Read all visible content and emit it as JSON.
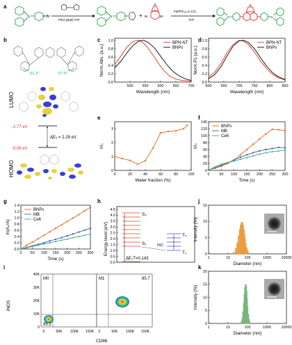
{
  "panel_letters": [
    "a",
    "b",
    "c",
    "d",
    "e",
    "f",
    "g",
    "h",
    "i",
    "j",
    "k"
  ],
  "scheme": {
    "reagent1": "PdCl₂(dppf),THF",
    "reagent2": "Pd(PPh₃)₄,K₂CO₃",
    "solvent2": "THF",
    "br": "Br",
    "n": "N",
    "s": "S",
    "o": "O",
    "b": "B",
    "plus": "+"
  },
  "orbitals": {
    "angle1": "61.3°",
    "angle2": "57.5°",
    "lumo": "LUMO",
    "homo": "HOMO",
    "lumo_e": "-2.77 eV",
    "homo_e": "-5.06 eV",
    "gap": "ΔE₉ = 2.29 eV"
  },
  "jablonski": {
    "s0": "S₀",
    "s1": "S₁",
    "t1": "T₁",
    "tn": "Tₙ",
    "isc": "ISC",
    "dest": "ΔEₛT=0.143",
    "ylabel": "Energy level (eV)",
    "yticks": [
      "0.0",
      "0.5",
      "1.0",
      "1.5",
      "2.0",
      "2.5",
      "3.0",
      "3.5",
      "4.0",
      "4.5"
    ]
  },
  "flow": {
    "xlabel": "CD86",
    "ylabel": "iNOS",
    "xticks": [
      "0",
      "50K",
      "100K",
      "150K"
    ],
    "yticks": [
      "0",
      "10K",
      "20K",
      "30K",
      "40K"
    ],
    "m0": "M0",
    "m0_val": "95.2",
    "m1": "M1",
    "m1_val": "85.7"
  },
  "colors": {
    "red": "#e8412c",
    "black": "#1a1a1a",
    "orange": "#e9742a",
    "blue": "#4a6cb3",
    "green": "#4fae8a",
    "dls_orange": "#f2a54a",
    "dls_green": "#5fc79a"
  },
  "chart_data": [
    {
      "panel": "c",
      "type": "line",
      "xlabel": "Wavelength (nm)",
      "ylabel": "Norm.Abs. (a.u.)",
      "xlim": [
        450,
        700
      ],
      "ylim": [
        0,
        1.05
      ],
      "xticks": [
        500,
        550,
        600,
        650,
        700
      ],
      "yticks": [
        0.0,
        0.2,
        0.4,
        0.6,
        0.8,
        1.0
      ],
      "legend": "top-right",
      "series": [
        {
          "name": "BPN-NT",
          "color": "#e8412c",
          "x": [
            450,
            470,
            490,
            510,
            525,
            540,
            555,
            570,
            590,
            610,
            630,
            650,
            670,
            700
          ],
          "y": [
            0.42,
            0.62,
            0.84,
            0.97,
            1.0,
            0.96,
            0.85,
            0.7,
            0.48,
            0.28,
            0.14,
            0.07,
            0.04,
            0.02
          ]
        },
        {
          "name": "BNPs",
          "color": "#1a1a1a",
          "x": [
            450,
            470,
            490,
            510,
            530,
            545,
            560,
            580,
            600,
            620,
            640,
            660,
            680,
            700
          ],
          "y": [
            0.34,
            0.5,
            0.7,
            0.88,
            0.99,
            1.0,
            0.95,
            0.82,
            0.62,
            0.42,
            0.26,
            0.15,
            0.08,
            0.04
          ]
        }
      ]
    },
    {
      "panel": "d",
      "type": "line",
      "xlabel": "Wavelength (nm)",
      "ylabel": "Norm.PL (a.u.)",
      "xlim": [
        600,
        850
      ],
      "ylim": [
        0,
        1.05
      ],
      "xticks": [
        600,
        650,
        700,
        750,
        800,
        850
      ],
      "yticks": [
        0.0,
        0.2,
        0.4,
        0.6,
        0.8,
        1.0
      ],
      "legend": "top-right",
      "series": [
        {
          "name": "BPN-NT",
          "color": "#e8412c",
          "x": [
            600,
            620,
            640,
            660,
            680,
            700,
            715,
            730,
            750,
            770,
            790,
            810,
            830,
            850
          ],
          "y": [
            0.12,
            0.24,
            0.44,
            0.7,
            0.9,
            1.0,
            0.98,
            0.9,
            0.72,
            0.5,
            0.32,
            0.18,
            0.1,
            0.05
          ]
        },
        {
          "name": "BNPs",
          "color": "#1a1a1a",
          "x": [
            600,
            620,
            640,
            660,
            680,
            700,
            715,
            730,
            750,
            770,
            790,
            810,
            830,
            850
          ],
          "y": [
            0.08,
            0.18,
            0.36,
            0.62,
            0.86,
            0.99,
            1.0,
            0.95,
            0.8,
            0.58,
            0.38,
            0.22,
            0.12,
            0.06
          ]
        }
      ]
    },
    {
      "panel": "e",
      "type": "line",
      "xlabel": "Water fraction (%)",
      "ylabel": "I/I₀",
      "xlim": [
        0,
        100
      ],
      "ylim": [
        0,
        3.5
      ],
      "xticks": [
        0,
        20,
        40,
        60,
        80,
        100
      ],
      "yticks": [
        0,
        1,
        2,
        3
      ],
      "series": [
        {
          "name": "",
          "color": "#e9742a",
          "x": [
            0,
            10,
            20,
            30,
            40,
            50,
            60,
            70,
            80,
            90,
            95
          ],
          "y": [
            1.0,
            0.85,
            0.72,
            0.45,
            0.7,
            1.6,
            2.7,
            2.8,
            2.85,
            3.0,
            3.25
          ]
        }
      ]
    },
    {
      "panel": "f",
      "type": "line",
      "xlabel": "Time (s)",
      "ylabel": "I/I₀",
      "xlim": [
        0,
        300
      ],
      "ylim": [
        0,
        140
      ],
      "xticks": [
        0,
        50,
        100,
        150,
        200,
        250,
        300
      ],
      "yticks": [
        0,
        20,
        40,
        60,
        80,
        100,
        120,
        140
      ],
      "legend": "top-left",
      "series": [
        {
          "name": "BNPs",
          "color": "#e9742a",
          "x": [
            0,
            25,
            50,
            75,
            100,
            125,
            150,
            175,
            200,
            225,
            250,
            275,
            300
          ],
          "y": [
            2,
            6,
            12,
            20,
            30,
            45,
            60,
            75,
            90,
            105,
            118,
            117,
            114
          ]
        },
        {
          "name": "MB",
          "color": "#4a6cb3",
          "x": [
            0,
            25,
            50,
            75,
            100,
            125,
            150,
            175,
            200,
            225,
            250,
            275,
            300
          ],
          "y": [
            1,
            8,
            15,
            22,
            30,
            38,
            45,
            51,
            56,
            60,
            63,
            66,
            65
          ]
        },
        {
          "name": "Ce6",
          "color": "#4fae8a",
          "x": [
            0,
            25,
            50,
            75,
            100,
            125,
            150,
            175,
            200,
            225,
            250,
            275,
            300
          ],
          "y": [
            1,
            10,
            18,
            23,
            27,
            32,
            37,
            42,
            47,
            51,
            54,
            56,
            58
          ]
        }
      ]
    },
    {
      "panel": "g",
      "type": "line",
      "xlabel": "Time (s)",
      "ylabel": "ln(A₀/A)",
      "xlim": [
        0,
        300
      ],
      "ylim": [
        0,
        1.4
      ],
      "xticks": [
        0,
        50,
        100,
        150,
        200,
        250,
        300
      ],
      "yticks": [
        0.0,
        0.2,
        0.4,
        0.6,
        0.8,
        1.0,
        1.2,
        1.4
      ],
      "legend": "top-left",
      "series": [
        {
          "name": "BNPs",
          "color": "#e9742a",
          "x": [
            0,
            25,
            50,
            75,
            100,
            125,
            150,
            175,
            200,
            225,
            250,
            275,
            300
          ],
          "y": [
            0,
            0.12,
            0.22,
            0.33,
            0.44,
            0.55,
            0.66,
            0.77,
            0.88,
            0.99,
            1.1,
            1.22,
            1.33
          ]
        },
        {
          "name": "MB",
          "color": "#4a6cb3",
          "x": [
            0,
            25,
            50,
            75,
            100,
            125,
            150,
            175,
            200,
            225,
            250,
            275,
            300
          ],
          "y": [
            0,
            0.05,
            0.1,
            0.15,
            0.2,
            0.26,
            0.31,
            0.36,
            0.42,
            0.48,
            0.54,
            0.6,
            0.66
          ]
        },
        {
          "name": "Ce6",
          "color": "#4fae8a",
          "x": [
            0,
            25,
            50,
            75,
            100,
            125,
            150,
            175,
            200,
            225,
            250,
            275,
            300
          ],
          "y": [
            0,
            0.04,
            0.08,
            0.12,
            0.16,
            0.2,
            0.24,
            0.28,
            0.32,
            0.36,
            0.4,
            0.44,
            0.48
          ]
        }
      ]
    },
    {
      "panel": "j",
      "type": "bar",
      "xlabel": "Diameter (nm)",
      "ylabel": "Intensity (%)",
      "xscale": "log",
      "xlim": [
        1,
        10000
      ],
      "ylim": [
        0,
        15
      ],
      "xticks": [
        "1",
        "10",
        "100",
        "1000",
        "10000"
      ],
      "yticks": [
        0,
        5,
        10,
        15
      ],
      "x": [
        20,
        25,
        30,
        35,
        40,
        45,
        50,
        55,
        60,
        65,
        70,
        75,
        80,
        90,
        100,
        110,
        120
      ],
      "values": [
        0.6,
        1.8,
        3.5,
        5.6,
        7.6,
        9.0,
        9.8,
        9.6,
        8.8,
        7.6,
        6.1,
        4.6,
        3.2,
        2.0,
        1.1,
        0.5,
        0.2
      ]
    },
    {
      "panel": "k",
      "type": "bar",
      "xlabel": "Diameter (nm)",
      "ylabel": "Intensity (%)",
      "xscale": "log",
      "xlim": [
        1,
        10000
      ],
      "ylim": [
        0,
        20
      ],
      "xticks": [
        "1",
        "10",
        "100",
        "1000",
        "10000"
      ],
      "yticks": [
        0,
        5,
        10,
        15,
        20
      ],
      "x": [
        50,
        55,
        60,
        65,
        70,
        75,
        80,
        85,
        90,
        95,
        100,
        110,
        120,
        130
      ],
      "values": [
        0.8,
        2.2,
        4.6,
        7.8,
        11.2,
        13.8,
        15.0,
        14.4,
        12.4,
        9.6,
        6.6,
        3.6,
        1.6,
        0.5
      ]
    }
  ]
}
